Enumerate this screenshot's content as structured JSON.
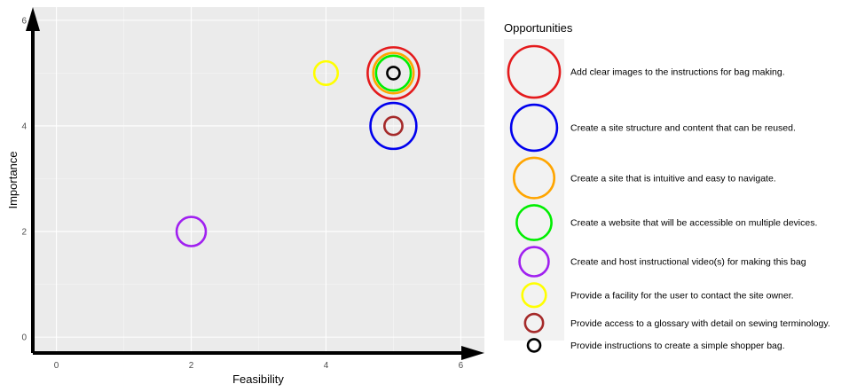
{
  "chart_data": {
    "type": "scatter",
    "title": "",
    "xlabel": "Feasibility",
    "ylabel": "Importance",
    "xlim": [
      -0.35,
      6.35
    ],
    "ylim": [
      -0.3,
      6.25
    ],
    "xticks": [
      0,
      2,
      4,
      6
    ],
    "yticks": [
      0,
      2,
      4,
      6
    ],
    "x_tick_labels": [
      "0",
      "2",
      "4",
      "6"
    ],
    "y_tick_labels": [
      "0",
      "2",
      "4",
      "6"
    ],
    "grid": true,
    "legend_position": "right",
    "legend_title": "Opportunities",
    "background": "#ebebeb",
    "series": [
      {
        "name": "Add clear images to the instructions for bag making.",
        "x": 5,
        "y": 5,
        "size_rank": 8,
        "color": "#e41a1c"
      },
      {
        "name": "Create a site structure and content that can be reused.",
        "x": 5,
        "y": 4,
        "size_rank": 7,
        "color": "#0000ee"
      },
      {
        "name": "Create a site that is intuitive and easy to navigate.",
        "x": 5,
        "y": 5,
        "size_rank": 6,
        "color": "#ffa500"
      },
      {
        "name": "Create a website that will be accessible on multiple devices.",
        "x": 5,
        "y": 5,
        "size_rank": 5,
        "color": "#00ee00"
      },
      {
        "name": "Create and host instructional video(s) for making this bag",
        "x": 2,
        "y": 2,
        "size_rank": 4,
        "color": "#a020f0"
      },
      {
        "name": "Provide a facility for the user to contact the site owner.",
        "x": 4,
        "y": 5,
        "size_rank": 3,
        "color": "#ffff00"
      },
      {
        "name": "Provide access to a glossary with detail on sewing terminology.",
        "x": 5,
        "y": 4,
        "size_rank": 2,
        "color": "#a52a2a"
      },
      {
        "name": "Provide instructions to create a simple shopper bag.",
        "x": 5,
        "y": 5,
        "size_rank": 1,
        "color": "#000000"
      }
    ]
  }
}
